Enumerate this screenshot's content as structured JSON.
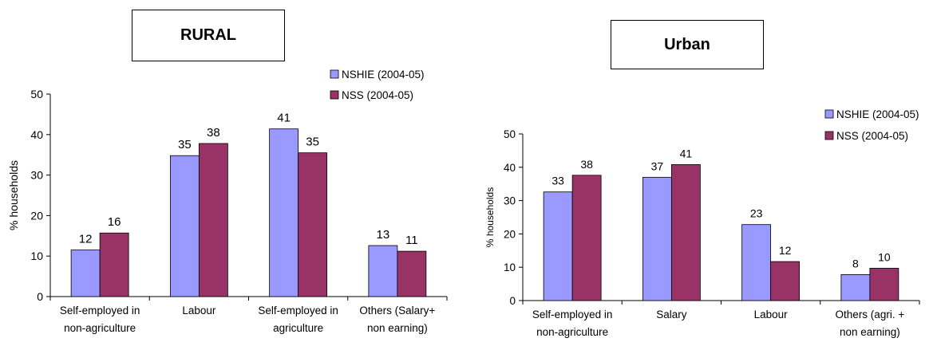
{
  "chart_data": [
    {
      "type": "bar",
      "title": "RURAL",
      "ylabel": "% households",
      "ylim": [
        0,
        50
      ],
      "yticks": [
        0,
        10,
        20,
        30,
        40,
        50
      ],
      "categories": [
        [
          "Self-employed in",
          "non-agriculture"
        ],
        [
          "Labour"
        ],
        [
          "Self-employed in",
          "agriculture"
        ],
        [
          "Others (Salary+",
          "non earning)"
        ]
      ],
      "series": [
        {
          "name": "NSHIE (2004-05)",
          "color": "#9999ff",
          "values": [
            11.5,
            34.8,
            41.4,
            12.6
          ],
          "labels": [
            "12",
            "35",
            "41",
            "13"
          ]
        },
        {
          "name": "NSS (2004-05)",
          "color": "#993366",
          "values": [
            15.7,
            37.8,
            35.5,
            11.2
          ],
          "labels": [
            "16",
            "38",
            "35",
            "11"
          ]
        }
      ],
      "legend": "top-right",
      "grid": false
    },
    {
      "type": "bar",
      "title": "Urban",
      "ylabel": "% households",
      "ylim": [
        0,
        50
      ],
      "yticks": [
        0,
        10,
        20,
        30,
        40,
        50
      ],
      "categories": [
        [
          "Self-employed in",
          "non-agriculture"
        ],
        [
          "Salary"
        ],
        [
          "Labour"
        ],
        [
          "Others (agri. +",
          "non earning)"
        ]
      ],
      "series": [
        {
          "name": "NSHIE (2004-05)",
          "color": "#9999ff",
          "values": [
            32.6,
            37.0,
            22.8,
            7.8
          ],
          "labels": [
            "33",
            "37",
            "23",
            "8"
          ]
        },
        {
          "name": "NSS (2004-05)",
          "color": "#993366",
          "values": [
            37.6,
            40.8,
            11.7,
            9.7
          ],
          "labels": [
            "38",
            "41",
            "12",
            "10"
          ]
        }
      ],
      "legend": "top-right",
      "grid": false
    }
  ]
}
